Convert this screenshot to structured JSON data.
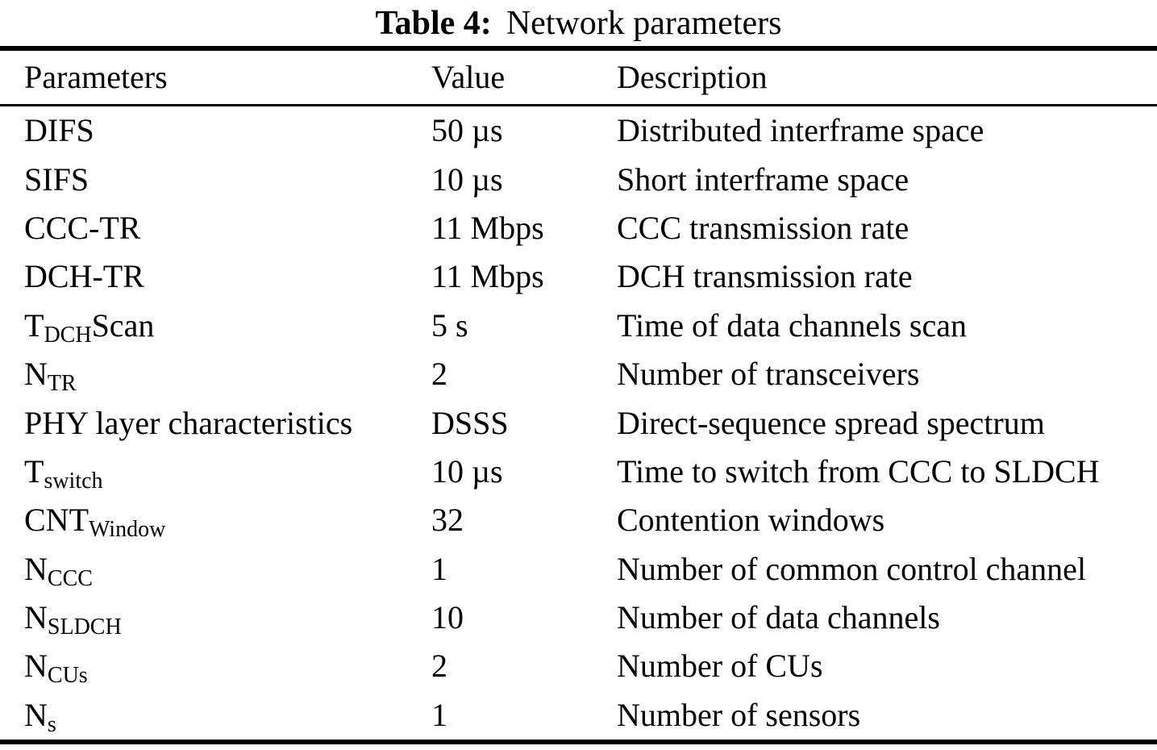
{
  "caption": {
    "label": "Table 4:",
    "text": "Network parameters"
  },
  "table": {
    "headers": [
      "Parameters",
      "Value",
      "Description"
    ],
    "rows": [
      {
        "parameter": [
          {
            "text": "DIFS"
          }
        ],
        "value": "50 µs",
        "description": "Distributed interframe space"
      },
      {
        "parameter": [
          {
            "text": "SIFS"
          }
        ],
        "value": "10 µs",
        "description": "Short interframe space"
      },
      {
        "parameter": [
          {
            "text": "CCC-TR"
          }
        ],
        "value": "11 Mbps",
        "description": "CCC transmission rate"
      },
      {
        "parameter": [
          {
            "text": "DCH-TR"
          }
        ],
        "value": "11 Mbps",
        "description": "DCH transmission rate"
      },
      {
        "parameter": [
          {
            "text": "T"
          },
          {
            "text": "DCH",
            "sub": true
          },
          {
            "text": "Scan"
          }
        ],
        "value": "5 s",
        "description": "Time of data channels scan"
      },
      {
        "parameter": [
          {
            "text": "N"
          },
          {
            "text": "TR",
            "sub": true
          }
        ],
        "value": "2",
        "description": "Number of transceivers"
      },
      {
        "parameter": [
          {
            "text": "PHY layer characteristics"
          }
        ],
        "value": "DSSS",
        "description": "Direct-sequence spread spectrum"
      },
      {
        "parameter": [
          {
            "text": "T"
          },
          {
            "text": "switch",
            "sub": true
          }
        ],
        "value": "10 µs",
        "description": "Time to switch from CCC to SLDCH"
      },
      {
        "parameter": [
          {
            "text": "CNT"
          },
          {
            "text": "Window",
            "sub": true
          }
        ],
        "value": "32",
        "description": "Contention windows"
      },
      {
        "parameter": [
          {
            "text": "N"
          },
          {
            "text": "CCC",
            "sub": true
          }
        ],
        "value": "1",
        "description": "Number of common control channel"
      },
      {
        "parameter": [
          {
            "text": "N"
          },
          {
            "text": "SLDCH",
            "sub": true
          }
        ],
        "value": "10",
        "description": "Number of data channels"
      },
      {
        "parameter": [
          {
            "text": "N"
          },
          {
            "text": "CUs",
            "sub": true
          }
        ],
        "value": "2",
        "description": "Number of CUs"
      },
      {
        "parameter": [
          {
            "text": "N"
          },
          {
            "text": "s",
            "sub": true
          }
        ],
        "value": "1",
        "description": "Number of sensors"
      }
    ]
  },
  "colors": {
    "text": "#000000",
    "background": "#ffffff",
    "rule": "#000000"
  }
}
